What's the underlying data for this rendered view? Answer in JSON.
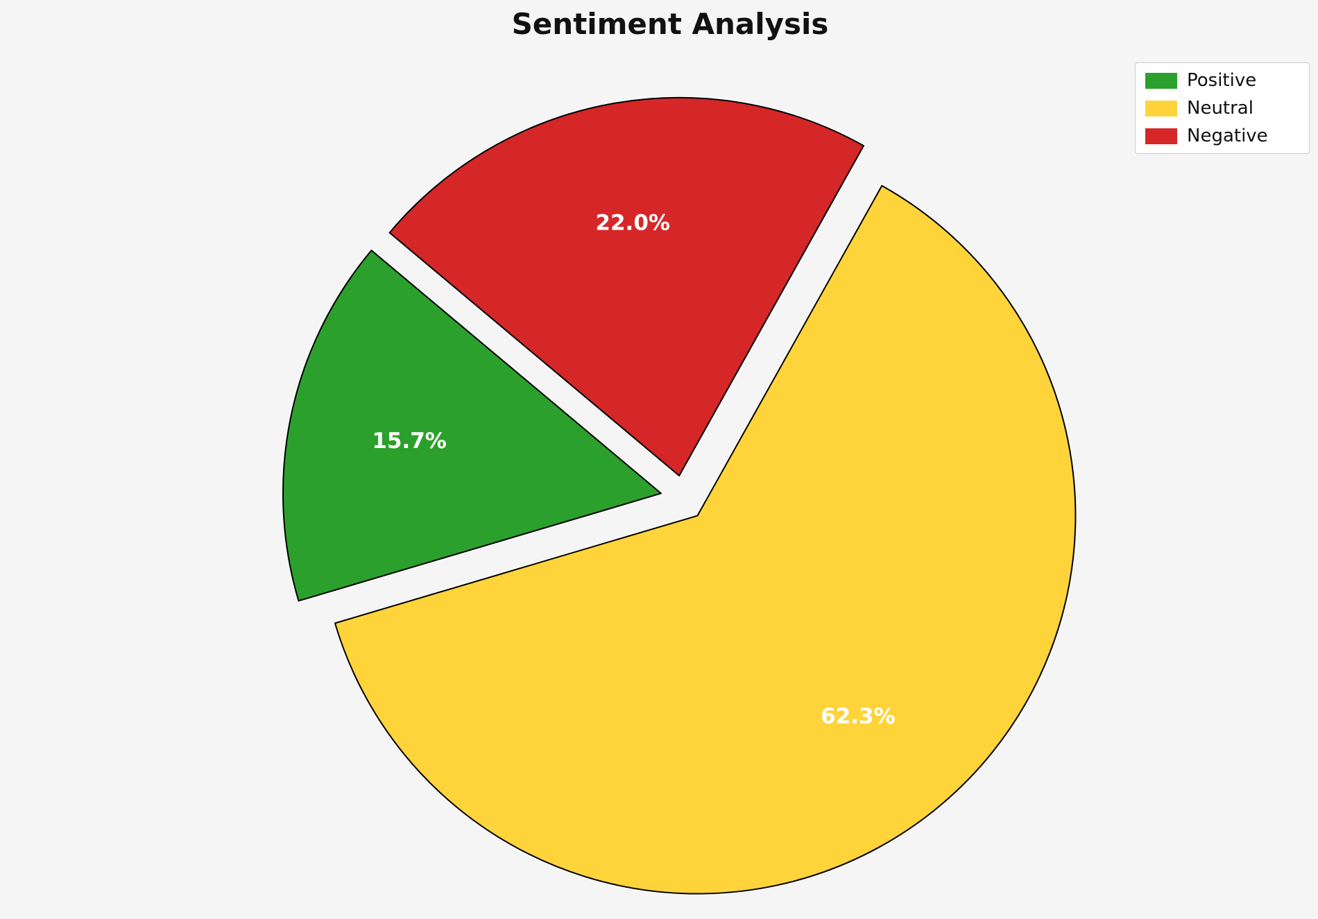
{
  "chart_data": {
    "type": "pie",
    "title": "Sentiment Analysis",
    "labels": [
      "Positive",
      "Neutral",
      "Negative"
    ],
    "values": [
      15.7,
      62.3,
      22.0
    ],
    "value_labels": [
      "15.7%",
      "62.3%",
      "22.0%"
    ],
    "colors": [
      "#2ca02c",
      "#ffd43b",
      "#d62728"
    ],
    "edge_color": "#000000",
    "start_angle": 140,
    "direction": "counterclockwise",
    "explode": [
      0.06,
      0.06,
      0.06
    ],
    "legend_position": "upper right",
    "background": "#f5f5f5"
  },
  "legend": {
    "items": [
      {
        "label": "Positive",
        "color": "#2ca02c"
      },
      {
        "label": "Neutral",
        "color": "#ffd43b"
      },
      {
        "label": "Negative",
        "color": "#d62728"
      }
    ]
  }
}
